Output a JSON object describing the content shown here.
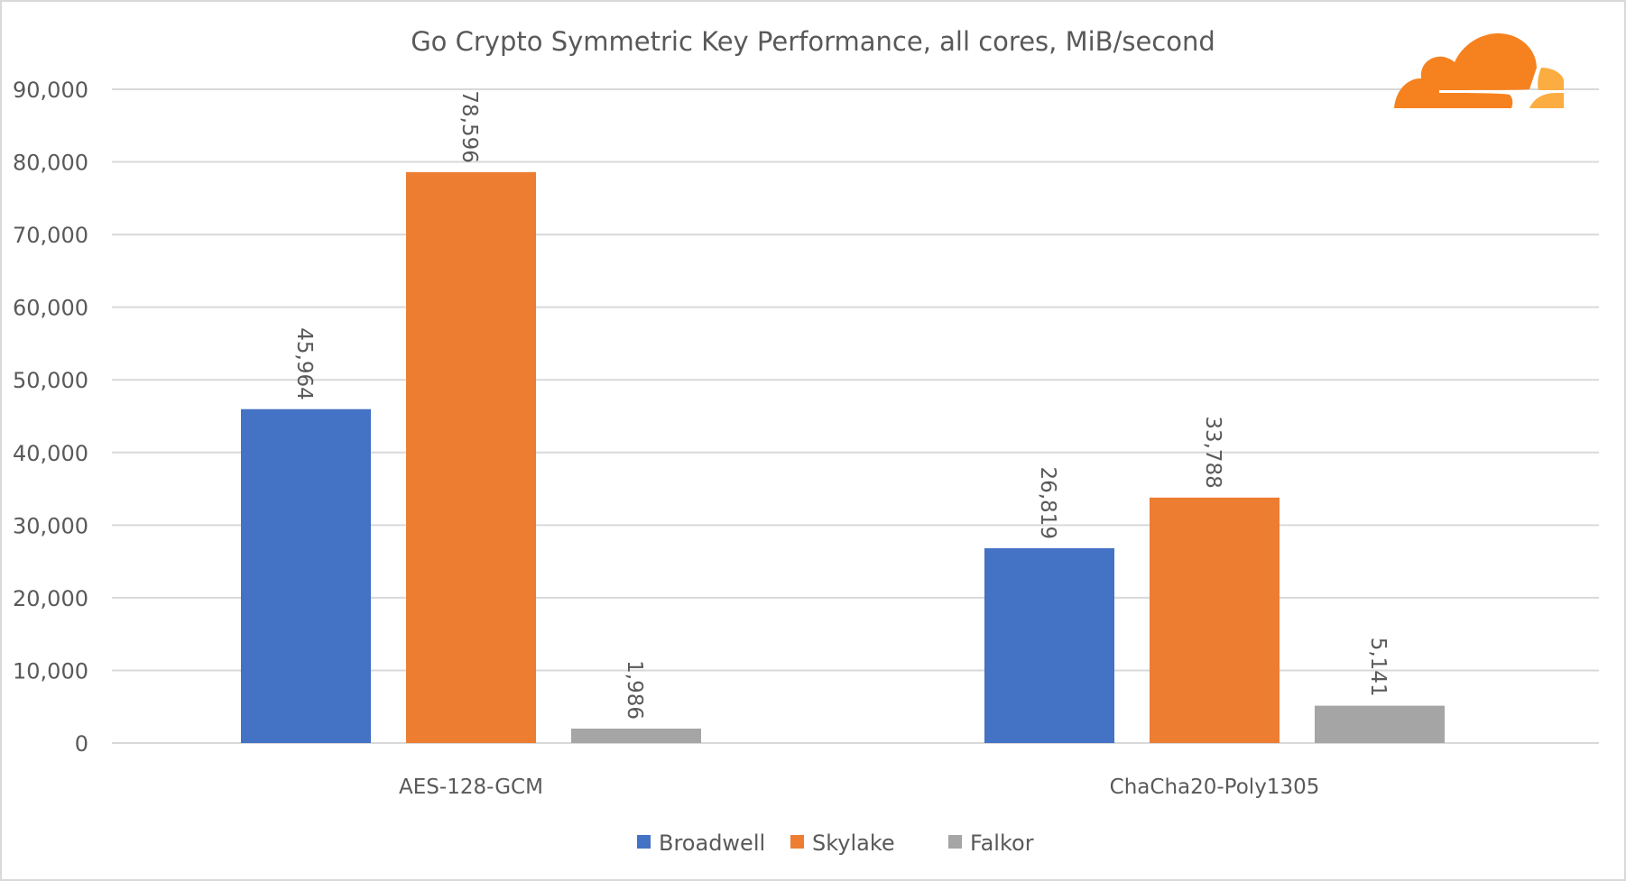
{
  "chart_data": {
    "type": "bar",
    "title": "Go Crypto Symmetric Key Performance, all cores, MiB/second",
    "xlabel": "",
    "ylabel": "",
    "categories": [
      "AES-128-GCM",
      "ChaCha20-Poly1305"
    ],
    "series": [
      {
        "name": "Broadwell",
        "color": "#4472c4",
        "values": [
          45964,
          26819
        ],
        "labels": [
          "45,964",
          "26,819"
        ]
      },
      {
        "name": "Skylake",
        "color": "#ed7d31",
        "values": [
          78596,
          33788
        ],
        "labels": [
          "78,596",
          "33,788"
        ]
      },
      {
        "name": "Falkor",
        "color": "#a5a5a5",
        "values": [
          1986,
          5141
        ],
        "labels": [
          "1,986",
          "5,141"
        ]
      }
    ],
    "ylim": [
      0,
      90000
    ],
    "yticks": [
      0,
      10000,
      20000,
      30000,
      40000,
      50000,
      60000,
      70000,
      80000,
      90000
    ],
    "ytick_labels": [
      "0",
      "10,000",
      "20,000",
      "30,000",
      "40,000",
      "50,000",
      "60,000",
      "70,000",
      "80,000",
      "90,000"
    ],
    "grid": true,
    "legend": "bottom-center",
    "logo": "cloudflare-cloud-logo"
  }
}
